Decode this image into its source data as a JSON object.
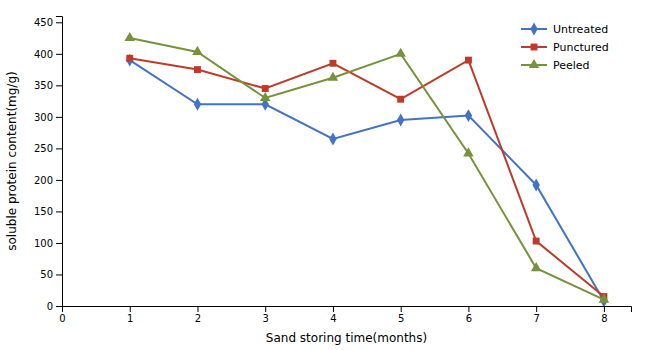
{
  "chart_data": {
    "type": "line",
    "xlabel": "Sand storing time(months)",
    "ylabel": "soluble protein content(mg/g)",
    "x": [
      1,
      2,
      3,
      4,
      5,
      6,
      7,
      8
    ],
    "series": [
      {
        "name": "Untreated",
        "color": "#4472C4",
        "marker": "diamond",
        "values": [
          390,
          320,
          320,
          265,
          295,
          302,
          192,
          8
        ]
      },
      {
        "name": "Punctured",
        "color": "#BE3B2A",
        "marker": "square",
        "values": [
          393,
          375,
          345,
          385,
          328,
          390,
          103,
          15
        ]
      },
      {
        "name": "Peeled",
        "color": "#76923C",
        "marker": "triangle",
        "values": [
          425,
          403,
          330,
          362,
          400,
          242,
          60,
          10
        ]
      }
    ],
    "xlim": [
      0,
      8.4
    ],
    "ylim": [
      0,
      460
    ],
    "xticks": [
      0,
      1,
      2,
      3,
      4,
      5,
      6,
      7,
      8
    ],
    "yticks": [
      0,
      50,
      100,
      150,
      200,
      250,
      300,
      350,
      400,
      450
    ],
    "grid": false,
    "legend": "upper right"
  }
}
